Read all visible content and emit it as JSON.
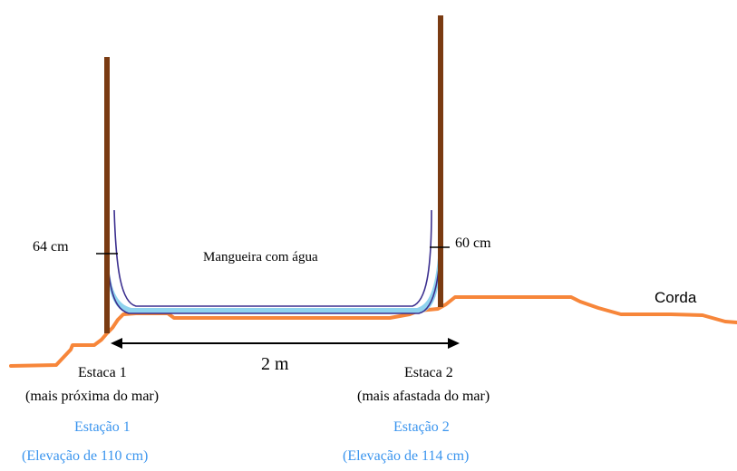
{
  "labels": {
    "left_height": "64 cm",
    "right_height": "60 cm",
    "hose": "Mangueira com água",
    "rope": "Corda",
    "distance": "2 m",
    "stake1_name": "Estaca 1",
    "stake1_desc": "(mais próxima do mar)",
    "stake2_name": "Estaca 2",
    "stake2_desc": "(mais afastada do mar)",
    "station1_name": "Estação 1",
    "station1_elev": "(Elevação de 110 cm)",
    "station2_name": "Estação 2",
    "station2_elev": "(Elevação de 114 cm)"
  },
  "colors": {
    "stake": "#7a3b12",
    "ground_rope": "#f7863a",
    "hose_outline": "#3b2f8f",
    "water": "#8fd3ee",
    "station_text": "#3b95ee",
    "text": "#000000"
  }
}
